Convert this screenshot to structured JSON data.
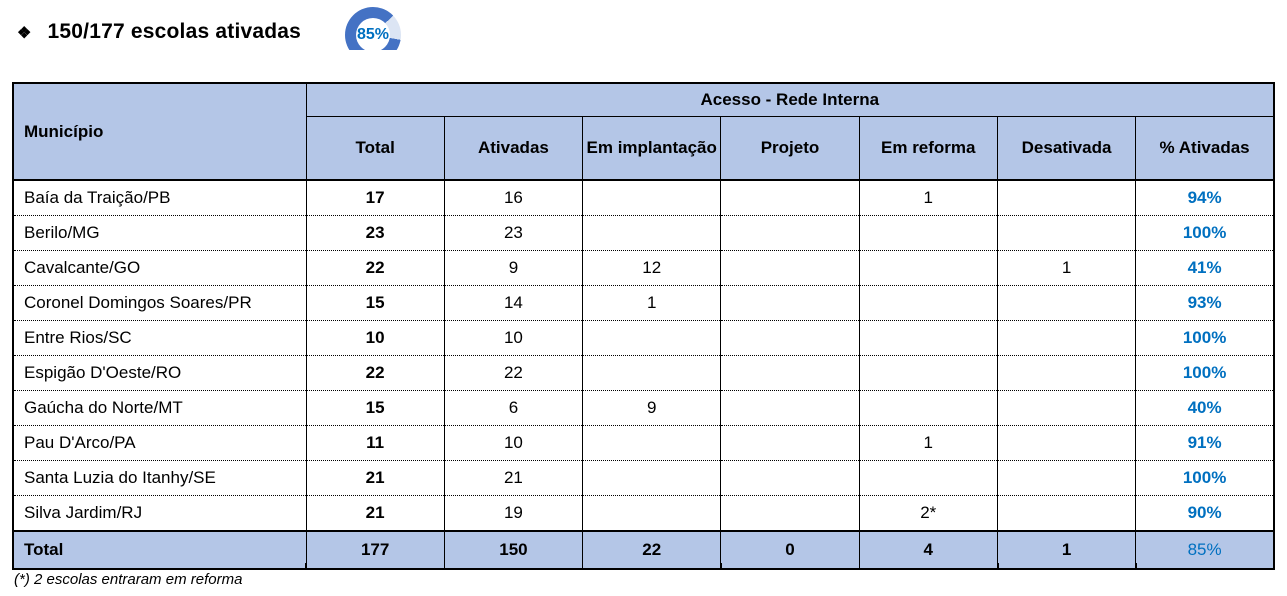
{
  "title": {
    "bullet": "❖",
    "text": "150/177 escolas ativadas"
  },
  "gauge": {
    "label": "85%",
    "percent": 85,
    "fill_color": "#4472C4",
    "rest_color": "#DCE5F4",
    "label_color": "#0070C0"
  },
  "colors": {
    "header_fill": "#B4C6E7",
    "total_row_fill": "#B4C6E7",
    "percent_text": "#0070C0",
    "border": "#000000"
  },
  "table": {
    "group_header": "Acesso - Rede Interna",
    "columns": [
      "Município",
      "Total",
      "Ativadas",
      "Em implantação",
      "Projeto",
      "Em reforma",
      "Desativada",
      "% Ativadas"
    ],
    "rows": [
      [
        "Baía da Traição/PB",
        "17",
        "16",
        "",
        "",
        "1",
        "",
        "94%"
      ],
      [
        "Berilo/MG",
        "23",
        "23",
        "",
        "",
        "",
        "",
        "100%"
      ],
      [
        "Cavalcante/GO",
        "22",
        "9",
        "12",
        "",
        "",
        "1",
        "41%"
      ],
      [
        "Coronel Domingos Soares/PR",
        "15",
        "14",
        "1",
        "",
        "",
        "",
        "93%"
      ],
      [
        "Entre Rios/SC",
        "10",
        "10",
        "",
        "",
        "",
        "",
        "100%"
      ],
      [
        "Espigão D'Oeste/RO",
        "22",
        "22",
        "",
        "",
        "",
        "",
        "100%"
      ],
      [
        "Gaúcha do Norte/MT",
        "15",
        "6",
        "9",
        "",
        "",
        "",
        "40%"
      ],
      [
        "Pau D'Arco/PA",
        "11",
        "10",
        "",
        "",
        "1",
        "",
        "91%"
      ],
      [
        "Santa Luzia do Itanhy/SE",
        "21",
        "21",
        "",
        "",
        "",
        "",
        "100%"
      ],
      [
        "Silva Jardim/RJ",
        "21",
        "19",
        "",
        "",
        "2*",
        "",
        "90%"
      ]
    ],
    "total_row": [
      "Total",
      "177",
      "150",
      "22",
      "0",
      "4",
      "1",
      "85%"
    ]
  },
  "footnote": "(*) 2 escolas entraram em reforma"
}
